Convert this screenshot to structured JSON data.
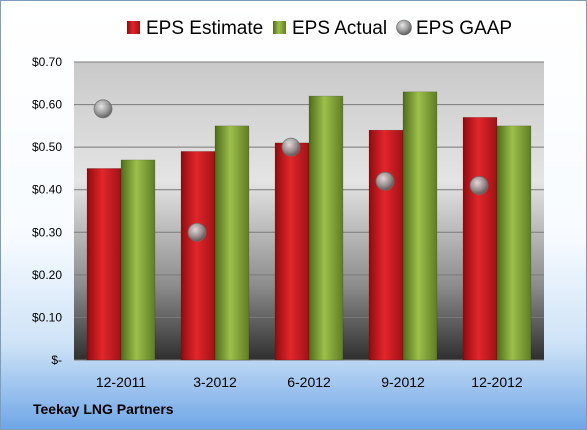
{
  "company": "Teekay LNG Partners",
  "chart_data": {
    "type": "bar",
    "categories": [
      "12-2011",
      "3-2012",
      "6-2012",
      "9-2012",
      "12-2012"
    ],
    "series": [
      {
        "name": "EPS Estimate",
        "kind": "bar",
        "color": "#c0161b",
        "values": [
          0.45,
          0.49,
          0.51,
          0.54,
          0.57
        ]
      },
      {
        "name": "EPS Actual",
        "kind": "bar",
        "color": "#7a9a33",
        "values": [
          0.47,
          0.55,
          0.62,
          0.63,
          0.55
        ]
      },
      {
        "name": "EPS GAAP",
        "kind": "marker",
        "color": "#9aa0a6",
        "values": [
          0.59,
          0.3,
          0.5,
          0.42,
          0.41
        ]
      }
    ],
    "ylim": [
      0,
      0.7
    ],
    "yticks": [
      0,
      0.1,
      0.2,
      0.3,
      0.4,
      0.5,
      0.6,
      0.7
    ],
    "ytick_labels": [
      "$-",
      "$0.10",
      "$0.20",
      "$0.30",
      "$0.40",
      "$0.50",
      "$0.60",
      "$0.70"
    ],
    "legend_position": "top",
    "grid": true
  }
}
